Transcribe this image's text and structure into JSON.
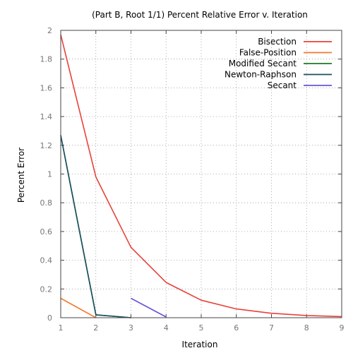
{
  "chart_data": {
    "type": "line",
    "title": "(Part B, Root 1/1) Percent Relative Error v. Iteration",
    "xlabel": "Iteration",
    "ylabel": "Percent Error",
    "xlim": [
      1,
      9
    ],
    "ylim": [
      0,
      2
    ],
    "x_ticks": [
      "1",
      "2",
      "3",
      "4",
      "5",
      "6",
      "7",
      "8",
      "9"
    ],
    "y_ticks": [
      "0",
      "0.2",
      "0.4",
      "0.6",
      "0.8",
      "1",
      "1.2",
      "1.4",
      "1.6",
      "1.8",
      "2"
    ],
    "grid": true,
    "legend_position": "top-right",
    "series": [
      {
        "name": "Bisection",
        "color": "#e8413a",
        "x": [
          1,
          2,
          3,
          4,
          5,
          6,
          7,
          8,
          9
        ],
        "y": [
          1.97,
          0.98,
          0.49,
          0.245,
          0.122,
          0.061,
          0.031,
          0.015,
          0.008
        ]
      },
      {
        "name": "False-Position",
        "color": "#f27a2e",
        "x": [
          1,
          2
        ],
        "y": [
          0.135,
          0.0
        ]
      },
      {
        "name": "Modified Secant",
        "color": "#1f7a22",
        "x": [
          1,
          2,
          3
        ],
        "y": [
          1.27,
          0.02,
          0.0
        ]
      },
      {
        "name": "Newton-Raphson",
        "color": "#1c4e63",
        "x": [
          1,
          2,
          3
        ],
        "y": [
          1.27,
          0.02,
          0.0
        ]
      },
      {
        "name": "Secant",
        "color": "#6a52d9",
        "x": [
          3,
          4
        ],
        "y": [
          0.135,
          0.005
        ]
      }
    ]
  }
}
